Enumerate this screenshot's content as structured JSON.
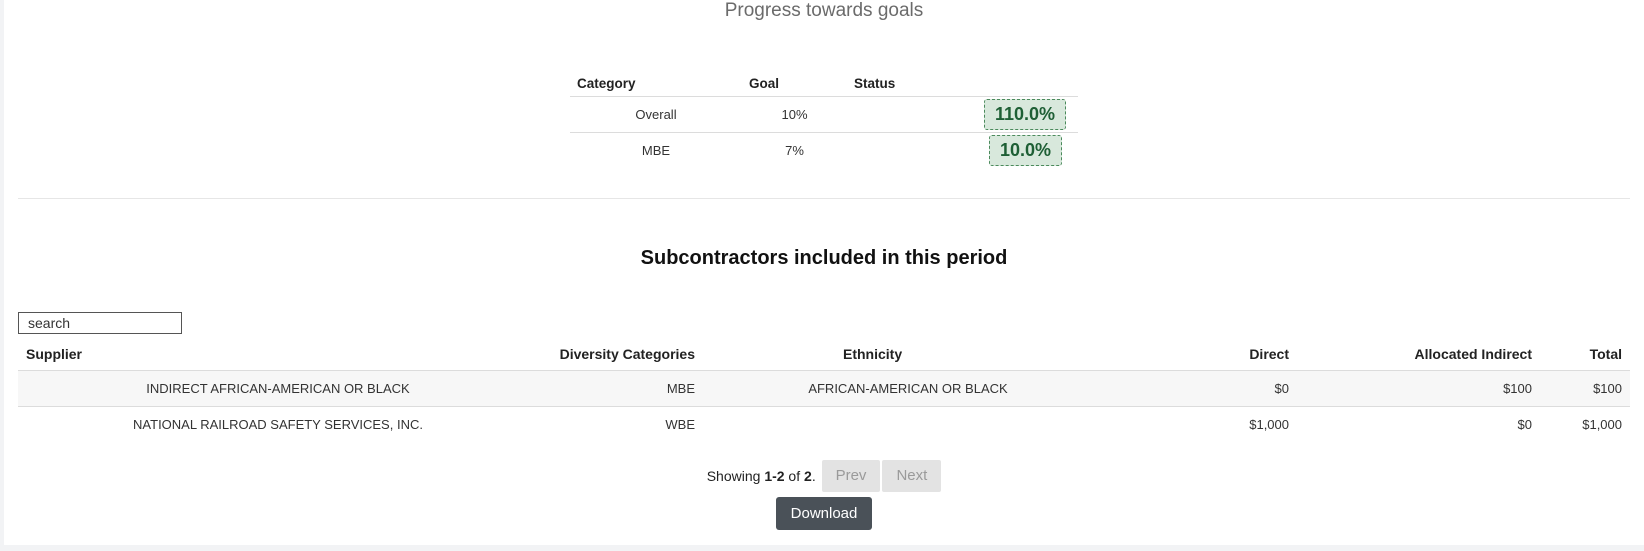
{
  "goals": {
    "title": "Progress towards goals",
    "headers": [
      "Category",
      "Goal",
      "Status"
    ],
    "rows": [
      {
        "category": "Overall",
        "goal": "10%",
        "status": "110.0%"
      },
      {
        "category": "MBE",
        "goal": "7%",
        "status": "10.0%"
      }
    ]
  },
  "subcontractors": {
    "title": "Subcontractors included in this period",
    "search_value": "search",
    "headers": [
      "Supplier",
      "Diversity Categories",
      "Ethnicity",
      "Direct",
      "Allocated Indirect",
      "Total"
    ],
    "rows": [
      {
        "supplier": "INDIRECT AFRICAN-AMERICAN OR BLACK",
        "diversity": "MBE",
        "ethnicity": "AFRICAN-AMERICAN OR BLACK",
        "direct": "$0",
        "indirect": "$100",
        "total": "$100"
      },
      {
        "supplier": "NATIONAL RAILROAD SAFETY SERVICES, INC.",
        "diversity": "WBE",
        "ethnicity": "",
        "direct": "$1,000",
        "indirect": "$0",
        "total": "$1,000"
      }
    ]
  },
  "pagination": {
    "showing_prefix": "Showing ",
    "range": "1-2",
    "of_text": " of ",
    "total": "2",
    "suffix": ".",
    "prev_label": "Prev",
    "next_label": "Next"
  },
  "download_label": "Download",
  "colors": {
    "badge_bg": "#d8e8dc",
    "badge_text": "#1e5f35",
    "download_bg": "#4a5158"
  }
}
